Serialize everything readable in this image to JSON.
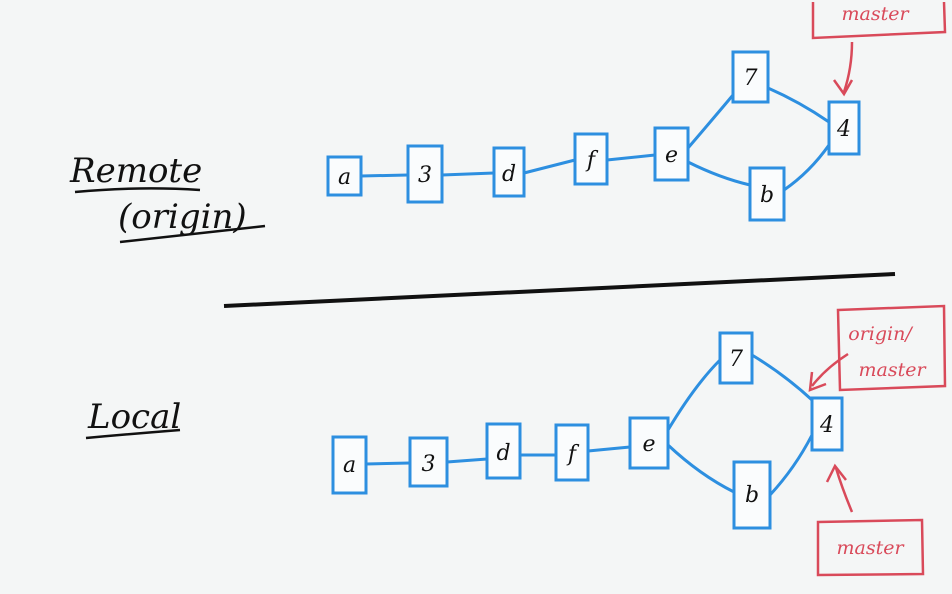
{
  "colors": {
    "commit": "#2d8fe0",
    "pointer": "#d94a5a",
    "ink": "#111111"
  },
  "remote": {
    "label_line1": "Remote",
    "label_line2": "(origin)",
    "commits": [
      "a",
      "3",
      "d",
      "f",
      "e",
      "7",
      "b",
      "4"
    ],
    "master_tag": "master"
  },
  "local": {
    "label": "Local",
    "commits": [
      "a",
      "3",
      "d",
      "f",
      "e",
      "7",
      "b",
      "4"
    ],
    "origin_master_line1": "origin/",
    "origin_master_line2": "master",
    "master_tag": "master"
  }
}
